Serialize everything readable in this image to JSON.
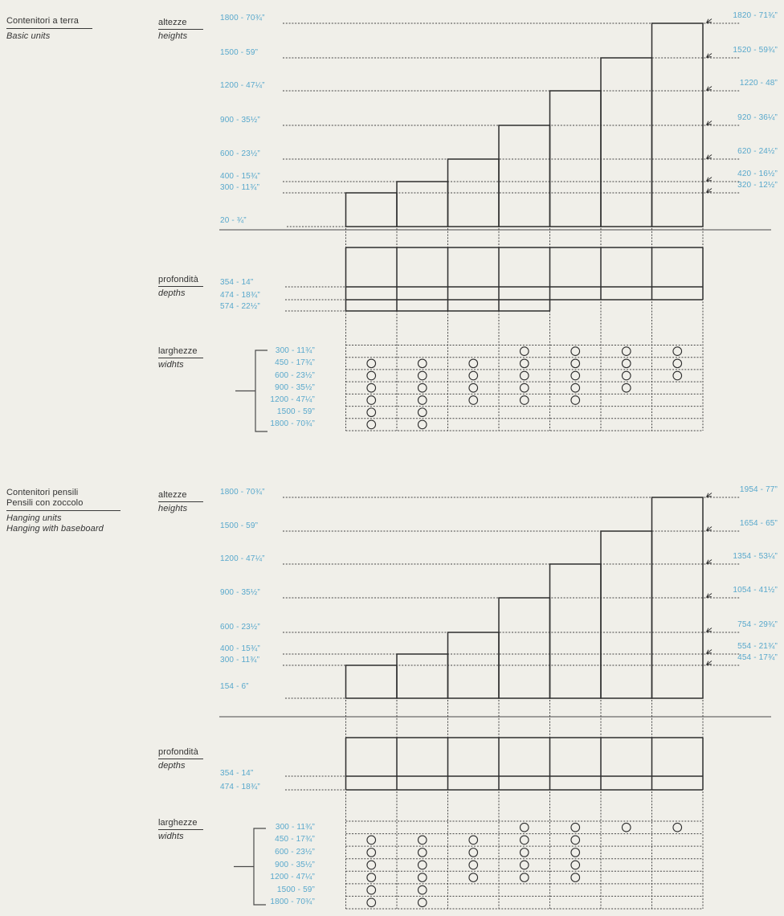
{
  "palette": {
    "background": "#f0efe9",
    "accent_blue": "#58a8cc",
    "ink": "#333333",
    "line": "#3a3a3a"
  },
  "diagrams": [
    {
      "title_it": [
        "Contenitori a terra"
      ],
      "title_en": [
        "Basic units"
      ],
      "sections": {
        "heights": {
          "it": "altezze",
          "en": "heights"
        },
        "depths": {
          "it": "profondità",
          "en": "depths"
        },
        "widths": {
          "it": "larghezze",
          "en": "widhts"
        }
      },
      "unit_heights": [
        "1800 - 70¾”",
        "1500 - 59”",
        "1200 - 47¼”",
        "900 - 35½”",
        "600 - 23½”",
        "400 - 15¾”",
        "300 - 11¾”"
      ],
      "base_height": "20 - ¾”",
      "overall_heights": [
        "1820 - 71¾”",
        "1520 - 59¾”",
        "1220 - 48”",
        "920 - 36¼”",
        "620 - 24½”",
        "420 - 16½”",
        "320 - 12½”"
      ],
      "depth_values": [
        "354 - 14”",
        "474 - 18¾”",
        "574 - 22½”"
      ],
      "width_values": [
        "300 - 11¾”",
        "450 - 17¾”",
        "600 - 23½”",
        "900 - 35½”",
        "1200 - 47¼”",
        "1500 - 59”",
        "1800 - 70¾”"
      ],
      "availability_matrix": [
        [
          0,
          0,
          0,
          1,
          1,
          1,
          1
        ],
        [
          1,
          1,
          1,
          1,
          1,
          1,
          1
        ],
        [
          1,
          1,
          1,
          1,
          1,
          1,
          1
        ],
        [
          1,
          1,
          1,
          1,
          1,
          1,
          0
        ],
        [
          1,
          1,
          1,
          1,
          1,
          0,
          0
        ],
        [
          1,
          1,
          0,
          0,
          0,
          0,
          0
        ],
        [
          1,
          1,
          0,
          0,
          0,
          0,
          0
        ]
      ]
    },
    {
      "title_it": [
        "Contenitori pensili",
        "Pensili con zoccolo"
      ],
      "title_en": [
        "Hanging units",
        "Hanging with baseboard"
      ],
      "sections": {
        "heights": {
          "it": "altezze",
          "en": "heights"
        },
        "depths": {
          "it": "profondità",
          "en": "depths"
        },
        "widths": {
          "it": "larghezze",
          "en": "widhts"
        }
      },
      "unit_heights": [
        "1800 - 70¾”",
        "1500 - 59”",
        "1200 - 47¼”",
        "900 - 35½”",
        "600 - 23½”",
        "400 - 15¾”",
        "300 - 11¾”"
      ],
      "base_height": "154 - 6”",
      "overall_heights": [
        "1954 - 77”",
        "1654 - 65”",
        "1354 - 53¼”",
        "1054 - 41½”",
        "754 - 29¾”",
        "554 - 21¾”",
        "454 - 17¾”"
      ],
      "depth_values": [
        "354 - 14”",
        "474 - 18¾”"
      ],
      "width_values": [
        "300 - 11¾”",
        "450 - 17¾”",
        "600 - 23½”",
        "900 - 35½”",
        "1200 - 47¼”",
        "1500 - 59”",
        "1800 - 70¾”"
      ],
      "availability_matrix": [
        [
          0,
          0,
          0,
          1,
          1,
          1,
          1
        ],
        [
          1,
          1,
          1,
          1,
          1,
          0,
          0
        ],
        [
          1,
          1,
          1,
          1,
          1,
          0,
          0
        ],
        [
          1,
          1,
          1,
          1,
          1,
          0,
          0
        ],
        [
          1,
          1,
          1,
          1,
          1,
          0,
          0
        ],
        [
          1,
          1,
          0,
          0,
          0,
          0,
          0
        ],
        [
          1,
          1,
          0,
          0,
          0,
          0,
          0
        ]
      ]
    }
  ]
}
